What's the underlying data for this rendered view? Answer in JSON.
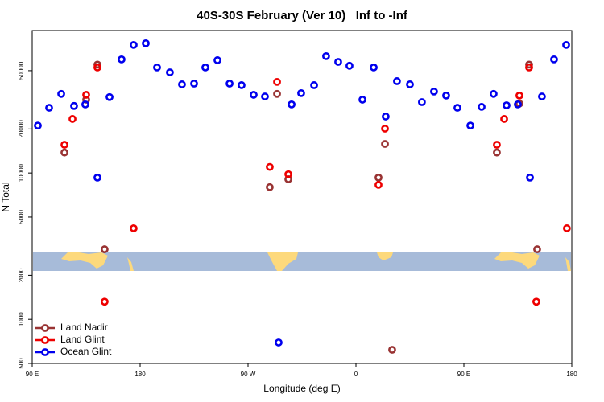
{
  "chart_data": {
    "type": "scatter",
    "title": "40S-30S February (Ver 10)   Inf to -Inf",
    "x_label": "Longitude (deg E)",
    "y_label": "N Total",
    "xlim": [
      90,
      540
    ],
    "xticks": [
      {
        "value": 90,
        "label": "90 E"
      },
      {
        "value": 180,
        "label": "180"
      },
      {
        "value": 270,
        "label": "90 W"
      },
      {
        "value": 360,
        "label": "0"
      },
      {
        "value": 450,
        "label": "90 E"
      },
      {
        "value": 540,
        "label": "180"
      }
    ],
    "ylim": [
      500,
      94000
    ],
    "yticks": [
      500,
      1000,
      2000,
      5000,
      10000,
      20000,
      50000
    ],
    "yscale": "log",
    "legend": "bottom-left",
    "series": [
      {
        "name": "Land Nadir",
        "color": "#993333",
        "x": [
          116.9,
          135.0,
          144.4,
          150.4,
          288.1,
          294.2,
          303.6,
          378.8,
          384.2,
          390.2,
          477.5,
          496.3,
          504.4,
          511.1
        ],
        "values": [
          13800,
          31700,
          55000,
          3010,
          8000,
          34700,
          9060,
          9300,
          15800,
          620,
          13800,
          29800,
          55000,
          3010
        ]
      },
      {
        "name": "Land Glint",
        "color": "#ee0000",
        "x": [
          116.9,
          123.6,
          135.0,
          144.4,
          150.4,
          174.6,
          288.1,
          294.2,
          303.6,
          378.8,
          384.2,
          477.5,
          483.6,
          496.3,
          504.4,
          510.4,
          535.9
        ],
        "values": [
          15600,
          23400,
          34200,
          52600,
          1320,
          4190,
          11000,
          41900,
          9800,
          8300,
          20100,
          15600,
          23400,
          33800,
          52600,
          1320,
          4190
        ]
      },
      {
        "name": "Ocean Glint",
        "color": "#0000ee",
        "x": [
          94.7,
          104.1,
          114.2,
          124.9,
          134.3,
          144.4,
          154.5,
          164.5,
          174.6,
          184.7,
          194.1,
          204.8,
          214.9,
          225.0,
          234.4,
          244.5,
          254.6,
          264.6,
          274.7,
          284.1,
          295.5,
          306.3,
          314.3,
          325.1,
          335.1,
          345.2,
          354.6,
          365.4,
          374.8,
          384.8,
          394.2,
          405.0,
          415.0,
          425.1,
          435.2,
          444.6,
          455.4,
          464.8,
          474.8,
          485.6,
          495.0,
          505.1,
          515.1,
          525.2,
          535.3
        ],
        "values": [
          21100,
          27900,
          34700,
          28700,
          29400,
          9300,
          33000,
          59700,
          75000,
          76900,
          52600,
          48700,
          40300,
          40800,
          52600,
          58900,
          40800,
          39800,
          34200,
          33300,
          695,
          29400,
          35100,
          39800,
          62800,
          57400,
          54000,
          31700,
          52600,
          24300,
          42400,
          40300,
          30500,
          36000,
          33800,
          27900,
          21100,
          28300,
          34700,
          29000,
          29400,
          9300,
          33300,
          59700,
          75000
        ]
      }
    ]
  }
}
